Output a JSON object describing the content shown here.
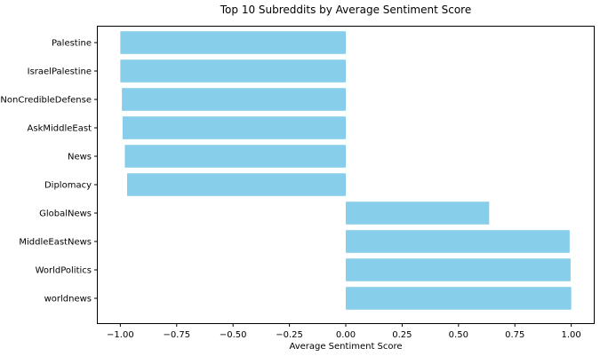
{
  "chart_data": {
    "type": "bar",
    "orientation": "horizontal",
    "title": "Top 10 Subreddits by Average Sentiment Score",
    "xlabel": "Average Sentiment Score",
    "ylabel": "",
    "categories": [
      "Palestine",
      "IsraelPalestine",
      "NonCredibleDefense",
      "AskMiddleEast",
      "News",
      "Diplomacy",
      "GlobalNews",
      "MiddleEastNews",
      "WorldPolitics",
      "worldnews"
    ],
    "values": [
      -1.0,
      -1.0,
      -0.993,
      -0.99,
      -0.98,
      -0.97,
      0.636,
      0.993,
      0.997,
      1.0
    ],
    "xlim": [
      -1.1,
      1.1
    ],
    "xticks": [
      -1.0,
      -0.75,
      -0.5,
      -0.25,
      0.0,
      0.25,
      0.5,
      0.75,
      1.0
    ],
    "xtick_labels": [
      "−1.00",
      "−0.75",
      "−0.50",
      "−0.25",
      "0.00",
      "0.25",
      "0.50",
      "0.75",
      "1.00"
    ],
    "bar_color": "#87CEEB",
    "grid": false
  }
}
